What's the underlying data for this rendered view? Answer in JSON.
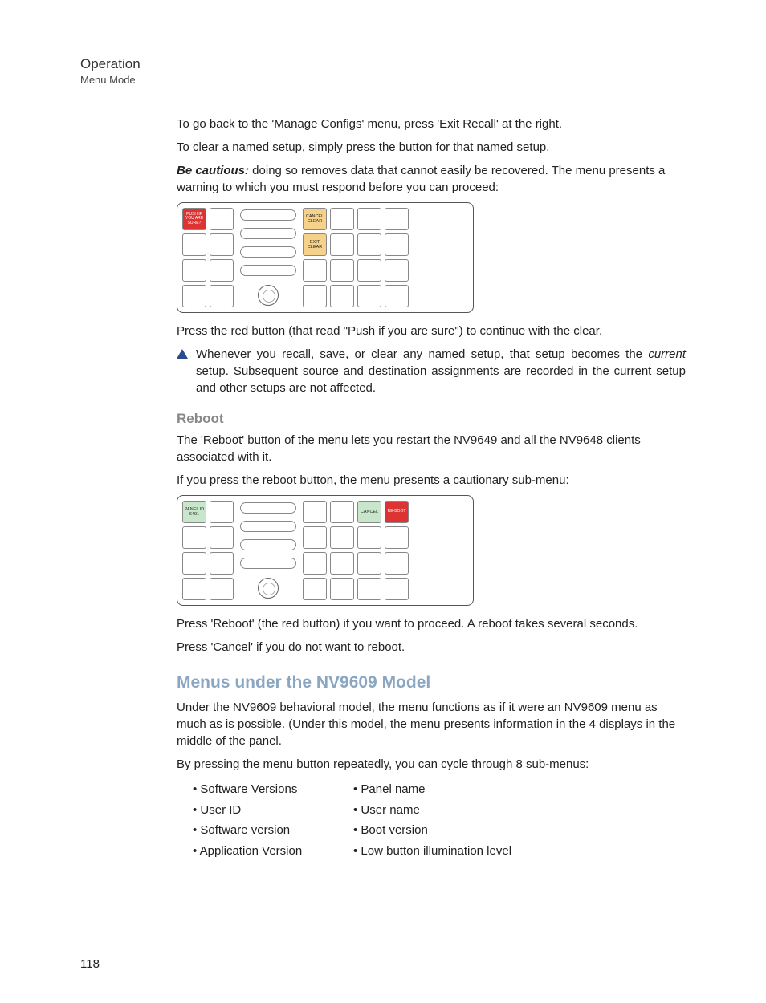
{
  "header": {
    "section": "Operation",
    "subsection": "Menu Mode"
  },
  "para1": "To go back to the 'Manage Configs' menu, press 'Exit Recall' at the right.",
  "para2": "To clear a named setup, simply press the button for that named setup.",
  "caution_label": "Be cautious:",
  "caution_text": " doing so removes data that cannot easily be recovered. The menu presents a warning to which you must respond before you can proceed:",
  "panel1": {
    "push_btn": "PUSH IF YOU ARE SURE?",
    "cancel_clear": "CANCEL CLEAR",
    "exit_clear": "EXIT CLEAR"
  },
  "para3": "Press the red button (that read \"Push if you are sure\") to continue with the clear.",
  "note_pre": "Whenever you recall, save, or clear any named setup, that setup becomes the ",
  "note_current": "current",
  "note_post": " setup. Subsequent source and destination assignments are recorded in the current setup and other setups are not affected.",
  "reboot_heading": "Reboot",
  "reboot_p1": "The 'Reboot' button of the menu lets you restart the NV9649 and all the NV9648 clients associated with it.",
  "reboot_p2": "If you press the reboot button, the menu presents a cautionary sub-menu:",
  "panel2": {
    "panel_id_label": "PANEL ID",
    "panel_id_value": "6491",
    "cancel": "CANCEL",
    "reboot": "RE-BOOT"
  },
  "reboot_p3": "Press 'Reboot' (the red button) if you want to proceed. A reboot takes several seconds.",
  "reboot_p4": "Press 'Cancel' if you do not want to reboot.",
  "menus_heading": "Menus under the NV9609 Model",
  "menus_p1": "Under the NV9609 behavioral model, the menu functions as if it were an NV9609 menu as much as is possible. (Under this model, the menu presents information in the 4 displays in the middle of the panel.",
  "menus_p2": "By pressing the menu button repeatedly, you can cycle through 8 sub-menus:",
  "submenus": [
    [
      "Software Versions",
      "Panel name"
    ],
    [
      "User ID",
      "User name"
    ],
    [
      "Software version",
      "Boot version"
    ],
    [
      "Application Version",
      "Low button illumination level"
    ]
  ],
  "page_number": "118"
}
